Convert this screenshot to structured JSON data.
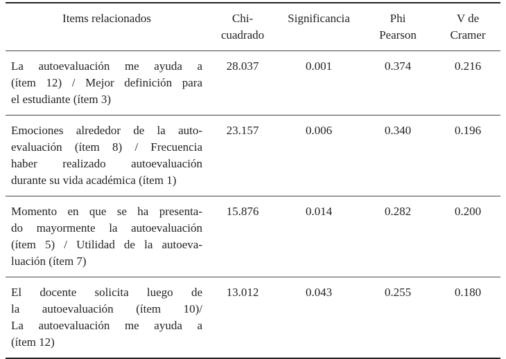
{
  "table": {
    "header": [
      [
        "Items relacionados"
      ],
      [
        "Chi-",
        "cuadrado"
      ],
      [
        "Significancia"
      ],
      [
        "Phi",
        "Pearson"
      ],
      [
        "V de",
        "Cramer"
      ]
    ],
    "rows": [
      [
        [
          "La autoevaluación me ayuda a",
          "(ítem 12) / Mejor definición para",
          "el estudiante (ítem 3)"
        ],
        "28.037",
        "0.001",
        "0.374",
        "0.216"
      ],
      [
        [
          "Emociones alrededor de la auto-",
          "evaluación (ítem 8) / Frecuencia",
          "haber realizado autoevaluación",
          "durante su vida académica (ítem 1)"
        ],
        "23.157",
        "0.006",
        "0.340",
        "0.196"
      ],
      [
        [
          "Momento en que se ha presenta-",
          "do mayormente la autoevaluación",
          "(ítem 5) / Utilidad de la autoeva-",
          "luación (ítem 7)"
        ],
        "15.876",
        "0.014",
        "0.282",
        "0.200"
      ],
      [
        [
          "El docente solicita luego de",
          "la autoevaluación (ítem 10)/",
          "La autoevaluación me ayuda a",
          "(ítem 12)"
        ],
        "13.012",
        "0.043",
        "0.255",
        "0.180"
      ]
    ]
  }
}
